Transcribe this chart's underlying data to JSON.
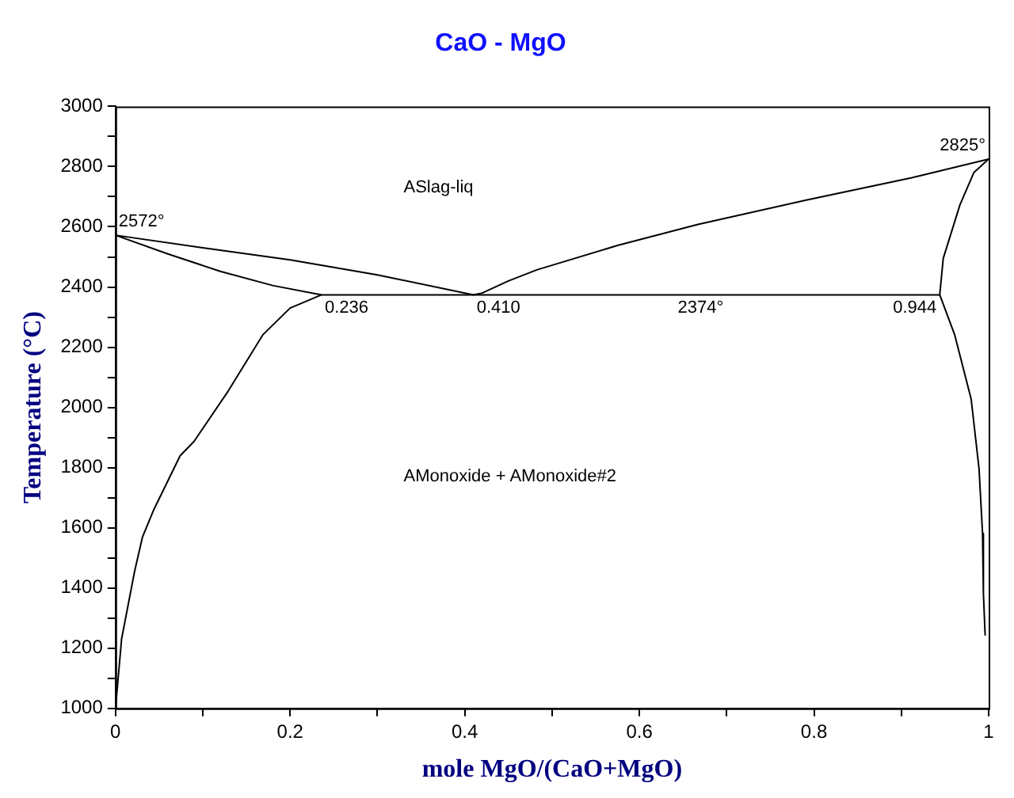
{
  "chart_data": {
    "type": "line",
    "title": "CaO - MgO",
    "xlabel": "mole MgO/(CaO+MgO)",
    "ylabel": "Temperature (°C)",
    "xlim": [
      0,
      1
    ],
    "ylim": [
      1000,
      3000
    ],
    "xticks": [
      0,
      {
        "value": 0.1,
        "label": null
      },
      0.2,
      {
        "value": 0.3,
        "label": null
      },
      0.4,
      {
        "value": 0.5,
        "label": null
      },
      0.6,
      {
        "value": 0.7,
        "label": null
      },
      0.8,
      {
        "value": 0.9,
        "label": null
      },
      1
    ],
    "yticks": [
      1000,
      {
        "value": 1100,
        "label": null
      },
      1200,
      {
        "value": 1300,
        "label": null
      },
      1400,
      {
        "value": 1500,
        "label": null
      },
      1600,
      {
        "value": 1700,
        "label": null
      },
      1800,
      {
        "value": 1900,
        "label": null
      },
      2000,
      {
        "value": 2100,
        "label": null
      },
      2200,
      {
        "value": 2300,
        "label": null
      },
      2400,
      {
        "value": 2500,
        "label": null
      },
      2600,
      {
        "value": 2700,
        "label": null
      },
      2800,
      {
        "value": 2900,
        "label": null
      },
      3000
    ],
    "grid": false,
    "legend": false,
    "marker": "none",
    "line_style": "solid",
    "series": [
      {
        "type": "line",
        "color": "#000000",
        "x": [
          0.236,
          0.18,
          0.12,
          0.06,
          0,
          0.1,
          0.2,
          0.3,
          0.41,
          0.42,
          0.45,
          0.4825,
          0.575,
          0.667,
          0.79,
          0.912,
          1,
          0.983,
          0.967,
          0.948,
          0.944
        ],
        "values": [
          2374,
          2405,
          2452,
          2510,
          2572,
          2530,
          2490,
          2440,
          2374,
          2380,
          2420,
          2457,
          2538,
          2608,
          2688,
          2763,
          2825,
          2780,
          2672,
          2495,
          2374
        ]
      },
      {
        "type": "line",
        "color": "#000000",
        "x": [
          0,
          0.007,
          0.022,
          0.031,
          0.044,
          0.074,
          0.09,
          0.129,
          0.169,
          0.2,
          0.236,
          0.944,
          0.961,
          0.98,
          0.989,
          0.993,
          0.994,
          0.996
        ],
        "values": [
          1000,
          1231,
          1457,
          1570,
          1661,
          1839,
          1887,
          2054,
          2242,
          2330,
          2374,
          2374,
          2242,
          2027,
          1796,
          1581,
          1382,
          1242
        ]
      }
    ],
    "annotations": [
      {
        "text": "2572°",
        "x": 0,
        "y": 2572
      },
      {
        "text": "2825°",
        "x": 1,
        "y": 2825
      },
      {
        "text": "2374°",
        "x": 0.7,
        "y": 2374
      },
      {
        "text": "0.236",
        "x": 0.236,
        "y": 2374
      },
      {
        "text": "0.410",
        "x": 0.41,
        "y": 2374
      },
      {
        "text": "0.944",
        "x": 0.944,
        "y": 2374
      },
      "ASlag-liq",
      "AMonoxide + AMonoxide#2"
    ]
  }
}
